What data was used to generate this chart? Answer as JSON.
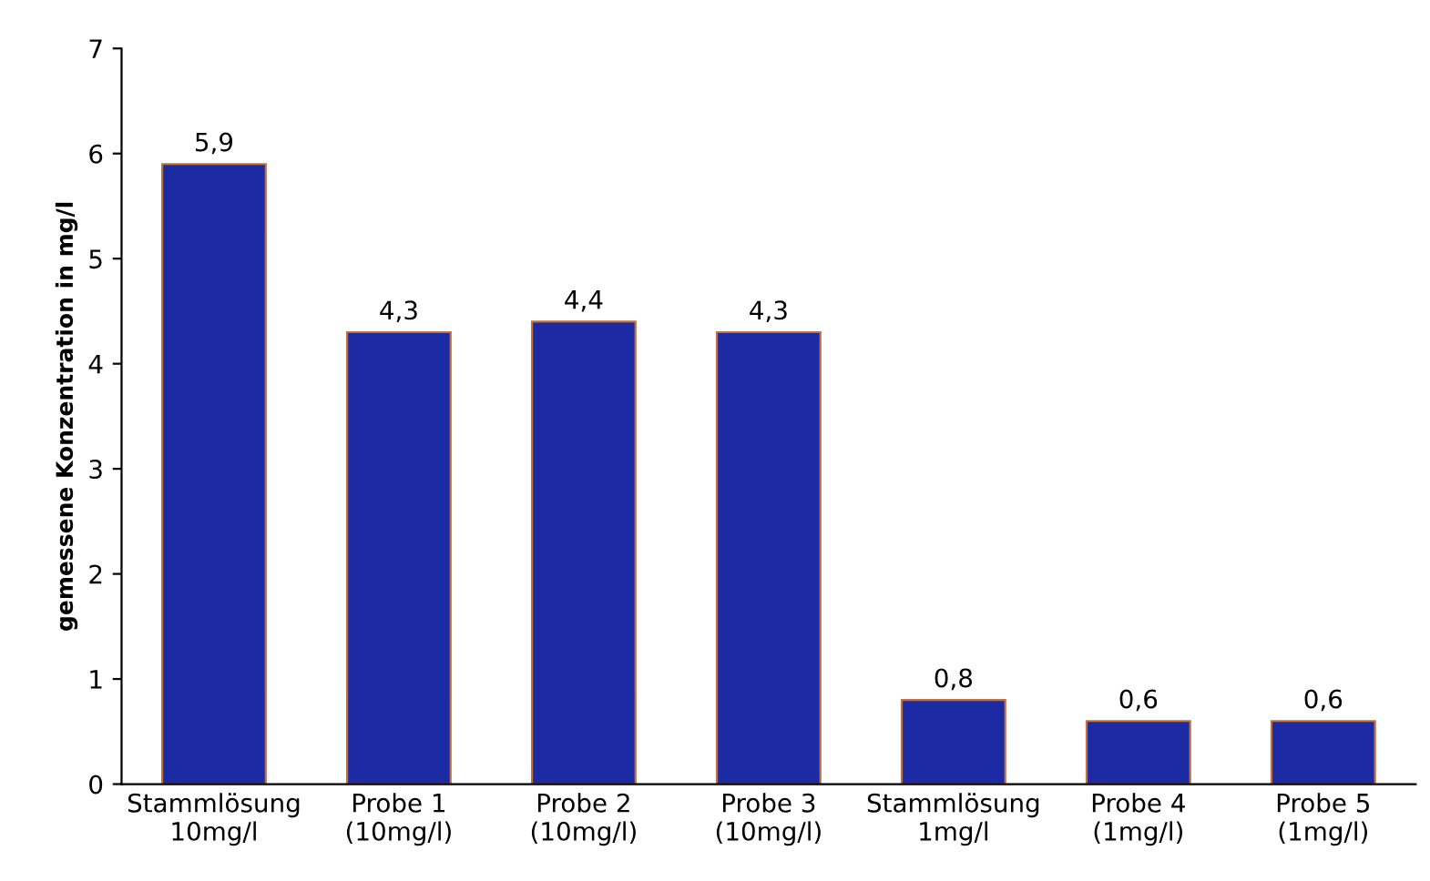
{
  "chart_data": {
    "type": "bar",
    "ylabel": "gemessene Konzentration in mg/l",
    "categories": [
      "Stammlösung\n10mg/l",
      "Probe 1\n(10mg/l)",
      "Probe 2\n(10mg/l)",
      "Probe 3\n(10mg/l)",
      "Stammlösung\n1mg/l",
      "Probe 4\n(1mg/l)",
      "Probe 5\n(1mg/l)"
    ],
    "values": [
      5.9,
      4.3,
      4.4,
      4.3,
      0.8,
      0.6,
      0.6
    ],
    "value_labels": [
      "5,9",
      "4,3",
      "4,4",
      "4,3",
      "0,8",
      "0,6",
      "0,6"
    ],
    "color": "#1c2ba3",
    "ylim": [
      0,
      7
    ],
    "yticks": [
      0,
      1,
      2,
      3,
      4,
      5,
      6,
      7
    ],
    "grid": false
  }
}
